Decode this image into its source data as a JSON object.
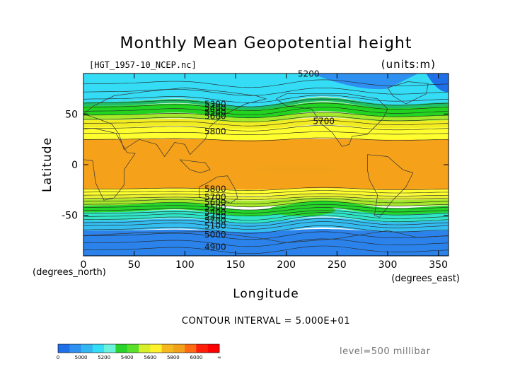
{
  "chart_data": {
    "type": "heatmap",
    "title": "Monthly Mean Geopotential height",
    "source_label": "[HGT_1957-10_NCEP.nc]",
    "units_label": "(units:m)",
    "xlabel": "Longitude",
    "ylabel": "Latitude",
    "x_unit_label": "(degrees_east)",
    "y_unit_label": "(degrees_north)",
    "xlim": [
      0,
      360
    ],
    "ylim": [
      -90,
      90
    ],
    "x_ticks": [
      0,
      50,
      100,
      150,
      200,
      250,
      300,
      350
    ],
    "y_ticks": [
      50,
      0,
      -50
    ],
    "contour_interval_text": "CONTOUR INTERVAL = 5.000E+01",
    "level_text": "level=500 millibar",
    "contour_labels": [
      {
        "text": "5200",
        "lon": 222,
        "lat": 87
      },
      {
        "text": "5300",
        "lon": 130,
        "lat": 57
      },
      {
        "text": "5400",
        "lon": 130,
        "lat": 53
      },
      {
        "text": "5500",
        "lon": 130,
        "lat": 49
      },
      {
        "text": "5600",
        "lon": 130,
        "lat": 45
      },
      {
        "text": "5700",
        "lon": 237,
        "lat": 40
      },
      {
        "text": "5800",
        "lon": 130,
        "lat": 30
      },
      {
        "text": "5800",
        "lon": 130,
        "lat": -27
      },
      {
        "text": "5700",
        "lon": 130,
        "lat": -35
      },
      {
        "text": "5600",
        "lon": 130,
        "lat": -40
      },
      {
        "text": "5500",
        "lon": 130,
        "lat": -45
      },
      {
        "text": "5400",
        "lon": 130,
        "lat": -50
      },
      {
        "text": "5300",
        "lon": 130,
        "lat": -54
      },
      {
        "text": "5200",
        "lon": 130,
        "lat": -58
      },
      {
        "text": "5100",
        "lon": 130,
        "lat": -63
      },
      {
        "text": "5000",
        "lon": 130,
        "lat": -72
      },
      {
        "text": "4900",
        "lon": 130,
        "lat": -84
      }
    ],
    "colorbar": {
      "colors": [
        "#1f6fe8",
        "#2e90f0",
        "#34b6f2",
        "#34dcf6",
        "#6cf2dc",
        "#2ad32a",
        "#58e02a",
        "#d6ef2a",
        "#fff22a",
        "#f5b81e",
        "#f2a21a",
        "#ff6a12",
        "#ff1e0a",
        "#ff0000"
      ],
      "tick_labels": [
        "0",
        "5000",
        "5200",
        "5400",
        "5600",
        "5800",
        "6000",
        "∞"
      ]
    },
    "bands": [
      {
        "lat_top": 90,
        "lat_bottom": 62,
        "color": "#34dcf6",
        "wave": 3.5
      },
      {
        "lat_top": 62,
        "lat_bottom": 58,
        "color": "#1fbf6a",
        "wave": 3
      },
      {
        "lat_top": 58,
        "lat_bottom": 49,
        "color": "#22d420",
        "wave": 2.5
      },
      {
        "lat_top": 49,
        "lat_bottom": 44,
        "color": "#a6e82a",
        "wave": 2
      },
      {
        "lat_top": 44,
        "lat_bottom": 37,
        "color": "#f2ec22",
        "wave": 1.5
      },
      {
        "lat_top": 37,
        "lat_bottom": 25,
        "color": "#ffff30",
        "wave": 1
      },
      {
        "lat_top": 25,
        "lat_bottom": -24,
        "color": "#f5a21a",
        "wave": 0.5
      },
      {
        "lat_top": -24,
        "lat_bottom": -30,
        "color": "#ffff30",
        "wave": 0.5
      },
      {
        "lat_top": -30,
        "lat_bottom": -34,
        "color": "#e8f030",
        "wave": 0.8
      },
      {
        "lat_top": -34,
        "lat_bottom": -40,
        "color": "#a6e82a",
        "wave": 1
      },
      {
        "lat_top": -40,
        "lat_bottom": -47,
        "color": "#24d52a",
        "wave": 3
      },
      {
        "lat_top": -47,
        "lat_bottom": -55,
        "color": "#2fe6c8",
        "wave": 2.5
      },
      {
        "lat_top": -55,
        "lat_bottom": -65,
        "color": "#34bdf0",
        "wave": 2
      },
      {
        "lat_top": -65,
        "lat_bottom": -90,
        "color": "#2a82ea",
        "wave": 1
      }
    ]
  }
}
